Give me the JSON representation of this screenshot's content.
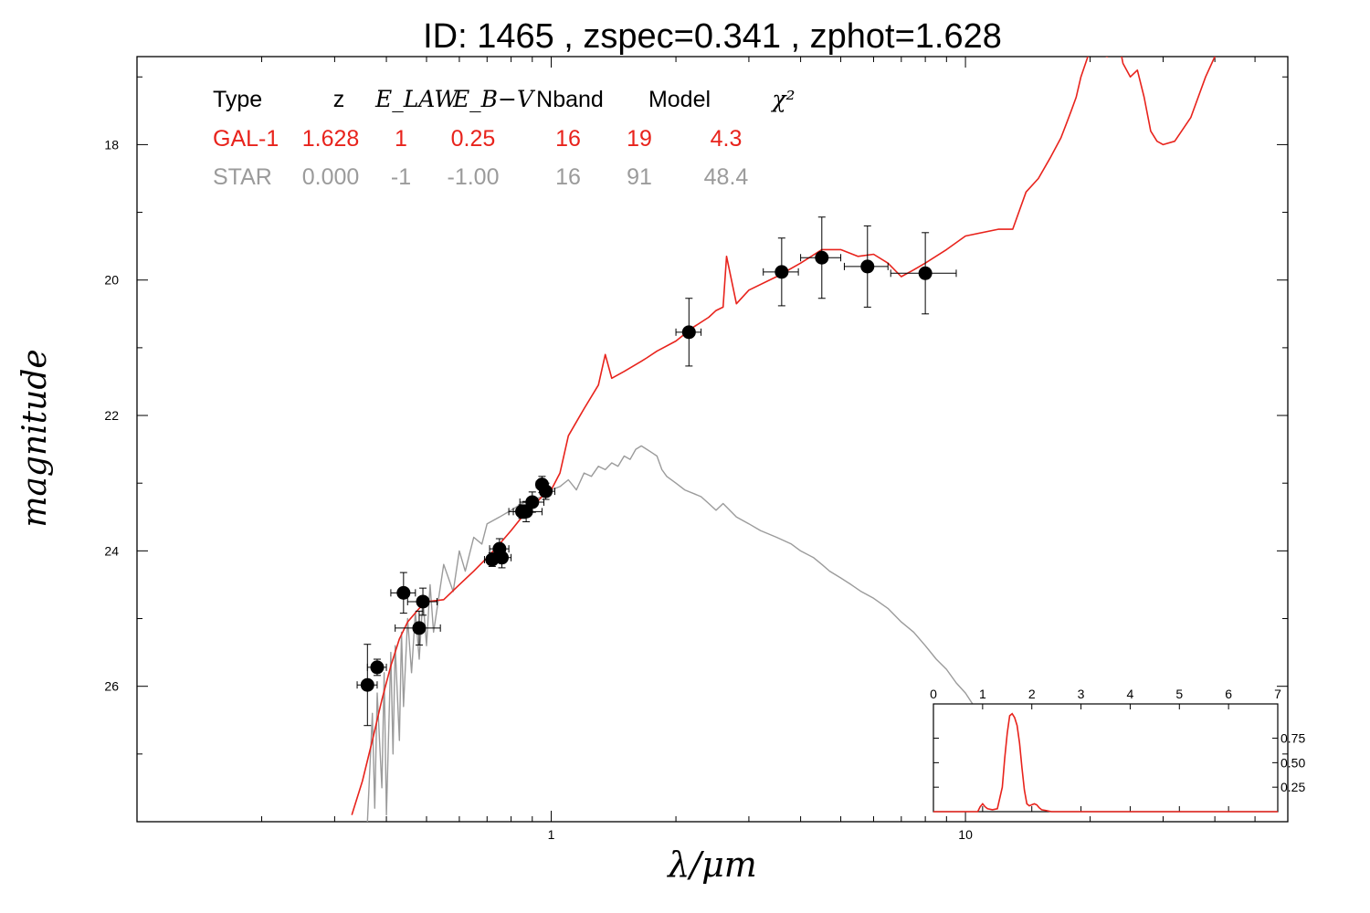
{
  "chart_data": {
    "type": "scatter",
    "title": "ID:  1465  , zspec=0.341 , zphot=1.628",
    "xlabel": "λ/μm",
    "ylabel": "magnitude",
    "x_scale": "log",
    "xlim": [
      0.1,
      60
    ],
    "ylim": [
      28.0,
      16.7
    ],
    "y_inverted": true,
    "x_ticks": [
      {
        "value": 1,
        "label": "1"
      },
      {
        "value": 10,
        "label": "10"
      }
    ],
    "y_ticks": [
      {
        "value": 18,
        "label": "18"
      },
      {
        "value": 20,
        "label": "20"
      },
      {
        "value": 22,
        "label": "22"
      },
      {
        "value": 24,
        "label": "24"
      },
      {
        "value": 26,
        "label": "26"
      }
    ],
    "table": {
      "headers": [
        "Type",
        "z",
        "E_LAW",
        "E_B−V",
        "Nband",
        "Model",
        "χ²"
      ],
      "rows": [
        {
          "cells": [
            "GAL-1",
            "1.628",
            "1",
            "0.25",
            "16",
            "19",
            "4.3"
          ],
          "color": "#e8231c"
        },
        {
          "cells": [
            "STAR",
            "0.000",
            "-1",
            "-1.00",
            "16",
            "91",
            "48.4"
          ],
          "color": "#9b9b9b"
        }
      ]
    },
    "observations": [
      {
        "x": 0.36,
        "y": 25.98,
        "xerr_lo": 0.02,
        "xerr_hi": 0.02,
        "yerr": 0.6
      },
      {
        "x": 0.38,
        "y": 25.72,
        "xerr_lo": 0.02,
        "xerr_hi": 0.02,
        "yerr": 0.12
      },
      {
        "x": 0.44,
        "y": 24.62,
        "xerr_lo": 0.03,
        "xerr_hi": 0.03,
        "yerr": 0.3
      },
      {
        "x": 0.48,
        "y": 25.14,
        "xerr_lo": 0.06,
        "xerr_hi": 0.06,
        "yerr": 0.25
      },
      {
        "x": 0.49,
        "y": 24.75,
        "xerr_lo": 0.04,
        "xerr_hi": 0.04,
        "yerr": 0.2
      },
      {
        "x": 0.72,
        "y": 24.13,
        "xerr_lo": 0.03,
        "xerr_hi": 0.03,
        "yerr": 0.1
      },
      {
        "x": 0.75,
        "y": 23.97,
        "xerr_lo": 0.04,
        "xerr_hi": 0.04,
        "yerr": 0.15
      },
      {
        "x": 0.76,
        "y": 24.1,
        "xerr_lo": 0.04,
        "xerr_hi": 0.04,
        "yerr": 0.15
      },
      {
        "x": 0.85,
        "y": 23.42,
        "xerr_lo": 0.04,
        "xerr_hi": 0.04,
        "yerr": 0.1
      },
      {
        "x": 0.87,
        "y": 23.42,
        "xerr_lo": 0.08,
        "xerr_hi": 0.08,
        "yerr": 0.15
      },
      {
        "x": 0.9,
        "y": 23.28,
        "xerr_lo": 0.06,
        "xerr_hi": 0.06,
        "yerr": 0.15
      },
      {
        "x": 0.95,
        "y": 23.02,
        "xerr_lo": 0.03,
        "xerr_hi": 0.03,
        "yerr": 0.12
      },
      {
        "x": 0.97,
        "y": 23.12,
        "xerr_lo": 0.03,
        "xerr_hi": 0.05,
        "yerr": 0.12
      },
      {
        "x": 2.15,
        "y": 20.77,
        "xerr_lo": 0.15,
        "xerr_hi": 0.15,
        "yerr": 0.5
      },
      {
        "x": 3.6,
        "y": 19.88,
        "xerr_lo": 0.35,
        "xerr_hi": 0.35,
        "yerr": 0.5
      },
      {
        "x": 4.5,
        "y": 19.67,
        "xerr_lo": 0.5,
        "xerr_hi": 0.5,
        "yerr": 0.6
      },
      {
        "x": 5.8,
        "y": 19.8,
        "xerr_lo": 0.7,
        "xerr_hi": 0.7,
        "yerr": 0.6
      },
      {
        "x": 8.0,
        "y": 19.9,
        "xerr_lo": 1.4,
        "xerr_hi": 1.5,
        "yerr": 0.6
      }
    ],
    "series": [
      {
        "name": "GAL-1",
        "color": "#e8231c",
        "x": [
          0.33,
          0.35,
          0.37,
          0.39,
          0.41,
          0.43,
          0.45,
          0.48,
          0.5,
          0.55,
          0.6,
          0.65,
          0.7,
          0.75,
          0.8,
          0.85,
          0.9,
          0.95,
          1.0,
          1.05,
          1.1,
          1.2,
          1.3,
          1.35,
          1.4,
          1.5,
          1.65,
          1.7,
          1.8,
          2.0,
          2.2,
          2.4,
          2.5,
          2.6,
          2.65,
          2.8,
          3.0,
          3.5,
          4.0,
          4.5,
          5.0,
          5.5,
          6.0,
          6.5,
          7.0,
          7.5,
          8.0,
          9.0,
          10.0,
          12.0,
          13.0,
          14.0,
          15.0,
          16.0,
          17.0,
          17.5,
          18.0,
          18.5,
          19.0,
          20.0,
          22.0,
          23.0,
          24.0,
          25.0,
          26.0,
          27.0,
          28.0,
          29.0,
          30.0,
          32.0,
          35.0,
          38.0,
          40.0,
          42.0,
          44.0
        ],
        "y": [
          27.9,
          27.4,
          26.8,
          26.2,
          25.7,
          25.3,
          25.05,
          24.85,
          24.75,
          24.72,
          24.5,
          24.3,
          24.1,
          23.9,
          23.7,
          23.5,
          23.35,
          23.2,
          23.1,
          22.85,
          22.3,
          21.9,
          21.55,
          21.1,
          21.45,
          21.35,
          21.2,
          21.15,
          21.05,
          20.9,
          20.7,
          20.55,
          20.45,
          20.4,
          19.65,
          20.35,
          20.15,
          19.95,
          19.75,
          19.55,
          19.55,
          19.65,
          19.62,
          19.75,
          19.95,
          19.85,
          19.75,
          19.55,
          19.35,
          19.25,
          19.25,
          18.7,
          18.5,
          18.2,
          17.9,
          17.7,
          17.5,
          17.3,
          17.0,
          16.6,
          16.7,
          16.2,
          16.8,
          17.0,
          16.9,
          17.3,
          17.8,
          17.95,
          18.0,
          17.95,
          17.6,
          17.0,
          16.7,
          16.55,
          16.5
        ]
      },
      {
        "name": "STAR",
        "color": "#9b9b9b",
        "x": [
          0.36,
          0.37,
          0.375,
          0.38,
          0.39,
          0.395,
          0.4,
          0.41,
          0.415,
          0.42,
          0.43,
          0.435,
          0.44,
          0.45,
          0.46,
          0.47,
          0.48,
          0.49,
          0.5,
          0.51,
          0.52,
          0.55,
          0.58,
          0.6,
          0.62,
          0.65,
          0.68,
          0.7,
          0.75,
          0.8,
          0.85,
          0.9,
          0.95,
          1.0,
          1.05,
          1.1,
          1.15,
          1.2,
          1.25,
          1.3,
          1.35,
          1.4,
          1.45,
          1.5,
          1.55,
          1.6,
          1.65,
          1.7,
          1.75,
          1.8,
          1.85,
          1.9,
          2.0,
          2.1,
          2.2,
          2.3,
          2.4,
          2.5,
          2.6,
          2.8,
          3.0,
          3.2,
          3.5,
          3.8,
          4.0,
          4.3,
          4.5,
          4.7,
          5.0,
          5.3,
          5.6,
          6.0,
          6.5,
          7.0,
          7.5,
          8.0,
          8.5,
          9.0,
          9.5,
          10.0,
          10.5,
          11.0
        ],
        "y": [
          28.0,
          26.4,
          27.8,
          26.1,
          27.5,
          25.8,
          27.9,
          25.5,
          27.0,
          25.4,
          26.8,
          25.2,
          26.3,
          25.0,
          25.8,
          24.9,
          25.6,
          24.7,
          25.4,
          24.5,
          25.2,
          24.2,
          24.6,
          24.0,
          24.3,
          23.8,
          23.9,
          23.6,
          23.5,
          23.4,
          23.3,
          23.25,
          23.2,
          23.1,
          23.05,
          22.95,
          23.1,
          22.85,
          22.9,
          22.75,
          22.8,
          22.7,
          22.75,
          22.6,
          22.65,
          22.5,
          22.45,
          22.5,
          22.55,
          22.6,
          22.8,
          22.9,
          23.0,
          23.1,
          23.15,
          23.2,
          23.3,
          23.4,
          23.3,
          23.5,
          23.6,
          23.7,
          23.8,
          23.9,
          24.0,
          24.1,
          24.2,
          24.3,
          24.4,
          24.5,
          24.6,
          24.7,
          24.85,
          25.05,
          25.2,
          25.4,
          25.6,
          25.75,
          25.95,
          26.1,
          26.3,
          26.5
        ]
      }
    ],
    "inset": {
      "type": "line",
      "xlim": [
        0,
        7
      ],
      "ylim": [
        0,
        1.1
      ],
      "x_ticks": [
        "0",
        "1",
        "2",
        "3",
        "4",
        "5",
        "6",
        "7"
      ],
      "y_ticks": [
        {
          "value": 0.25,
          "label": "0.25"
        },
        {
          "value": 0.5,
          "label": "0.50"
        },
        {
          "value": 0.75,
          "label": "0.75"
        }
      ],
      "color": "#e8231c",
      "x": [
        0,
        0.9,
        0.95,
        1.0,
        1.05,
        1.1,
        1.2,
        1.3,
        1.4,
        1.45,
        1.5,
        1.55,
        1.6,
        1.65,
        1.7,
        1.75,
        1.8,
        1.85,
        1.9,
        1.95,
        2.0,
        2.05,
        2.1,
        2.15,
        2.2,
        2.3,
        2.4,
        2.5,
        7.0
      ],
      "y": [
        0.0,
        0.0,
        0.05,
        0.08,
        0.05,
        0.03,
        0.02,
        0.03,
        0.25,
        0.55,
        0.8,
        0.98,
        1.0,
        0.96,
        0.88,
        0.7,
        0.45,
        0.22,
        0.08,
        0.06,
        0.07,
        0.08,
        0.07,
        0.04,
        0.02,
        0.01,
        0.0,
        0.0,
        0.0
      ]
    }
  }
}
